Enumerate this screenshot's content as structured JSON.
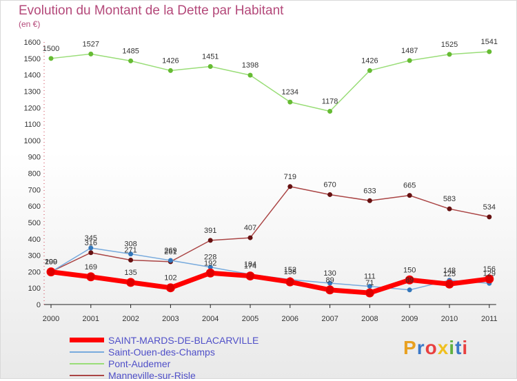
{
  "header": {
    "title": "Evolution du Montant de la Dette par Habitant",
    "unit": "(en €)"
  },
  "logo": {
    "text": "Proxiti",
    "colors": [
      "#e8a020",
      "#3a78c8",
      "#e84040",
      "#f0c020",
      "#60b040",
      "#3a78c8",
      "#e84040"
    ]
  },
  "chart_data": {
    "type": "line",
    "x": [
      "2000",
      "2001",
      "2002",
      "2003",
      "2004",
      "2005",
      "2006",
      "2007",
      "2008",
      "2009",
      "2010",
      "2011"
    ],
    "ylim": [
      0,
      1600
    ],
    "yticks": [
      0,
      100,
      200,
      300,
      400,
      500,
      600,
      700,
      800,
      900,
      1000,
      1100,
      1200,
      1300,
      1400,
      1500,
      1600
    ],
    "grid": false,
    "legend_position": "bottom-left",
    "series": [
      {
        "name": "Pont-Audemer",
        "color": "#99dd77",
        "marker": "#66bb33",
        "width": 1.5,
        "values": [
          1500,
          1527,
          1485,
          1426,
          1451,
          1398,
          1234,
          1178,
          1426,
          1487,
          1525,
          1541
        ],
        "labels": [
          "1500",
          "1527",
          "1485",
          "1426",
          "1451",
          "1398",
          "1234",
          "1178",
          "1426",
          "1487",
          "1525",
          "1541"
        ]
      },
      {
        "name": "Manneville-sur-Risle",
        "color": "#aa4444",
        "marker": "#661111",
        "width": 1.5,
        "values": [
          200,
          316,
          271,
          261,
          391,
          407,
          719,
          670,
          633,
          665,
          583,
          534
        ],
        "labels": [
          "200",
          "316",
          "271",
          "261",
          "391",
          "407",
          "719",
          "670",
          "633",
          "665",
          "583",
          "534"
        ]
      },
      {
        "name": "Saint-Ouen-des-Champs",
        "color": "#77aadd",
        "marker": "#3377bb",
        "width": 1.5,
        "values": [
          199,
          345,
          308,
          269,
          228,
          184,
          152,
          130,
          111,
          89,
          148,
          129
        ],
        "labels": [
          "199",
          "345",
          "308",
          "269",
          "228",
          "184",
          "152",
          "130",
          "111",
          "89",
          "148",
          "129"
        ]
      },
      {
        "name": "SAINT-MARDS-DE-BLACARVILLE",
        "color": "#ff0000",
        "marker": "#dd0000",
        "width": 7,
        "values": [
          199,
          169,
          135,
          102,
          192,
          174,
          138,
          89,
          71,
          150,
          125,
          156
        ],
        "labels": [
          "199",
          "169",
          "135",
          "102",
          "192",
          "174",
          "138",
          "89",
          "71",
          "150",
          "125",
          "156"
        ]
      }
    ],
    "legend": [
      {
        "name": "SAINT-MARDS-DE-BLACARVILLE",
        "color": "#ff0000",
        "width": 7
      },
      {
        "name": "Saint-Ouen-des-Champs",
        "color": "#77aadd",
        "width": 2
      },
      {
        "name": "Pont-Audemer",
        "color": "#99dd77",
        "width": 2
      },
      {
        "name": "Manneville-sur-Risle",
        "color": "#aa4444",
        "width": 2
      }
    ]
  }
}
